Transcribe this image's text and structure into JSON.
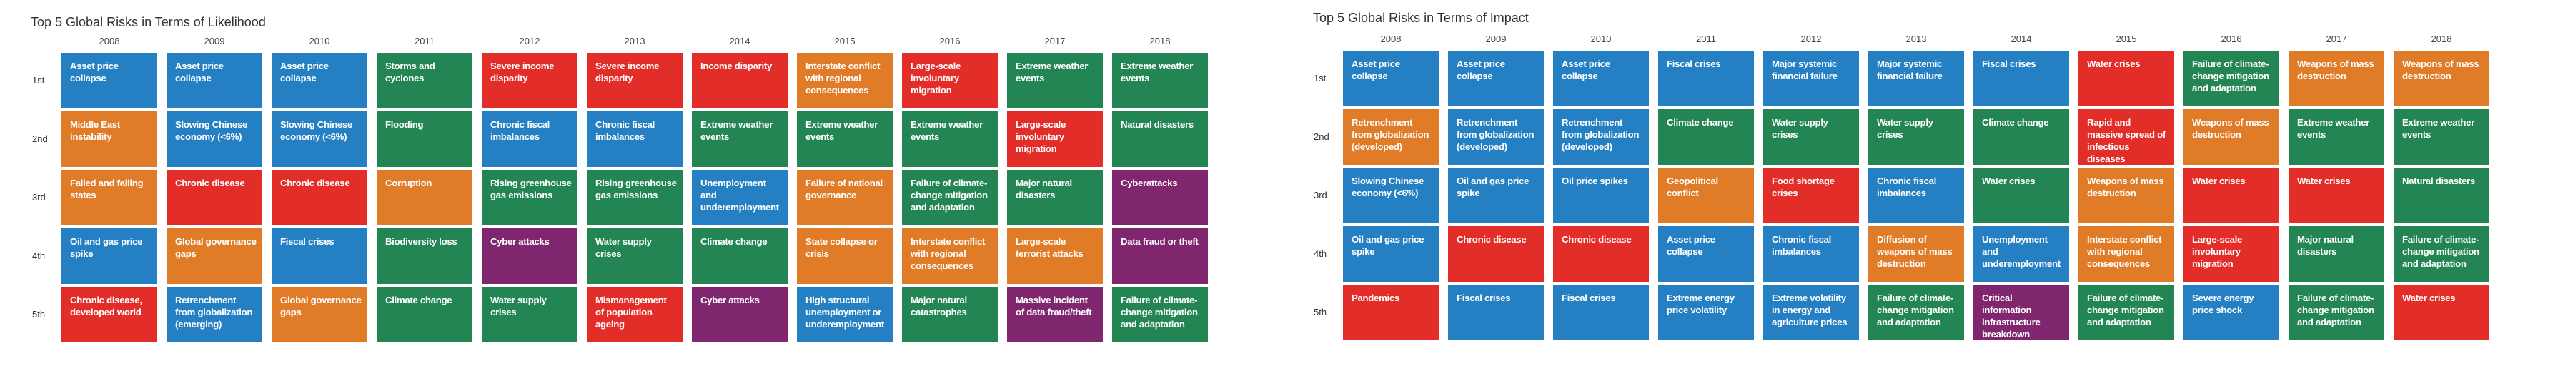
{
  "categories": {
    "economic": "#2580C3",
    "geopolitical": "#E07B27",
    "societal": "#E32D28",
    "environmental": "#238553",
    "technological": "#80266F"
  },
  "chart_data": [
    {
      "type": "table",
      "title": "Top 5 Global Risks in Terms of Likelihood",
      "columns": [
        "2008",
        "2009",
        "2010",
        "2011",
        "2012",
        "2013",
        "2014",
        "2015",
        "2016",
        "2017",
        "2018"
      ],
      "rows": [
        "1st",
        "2nd",
        "3rd",
        "4th",
        "5th"
      ],
      "cells": [
        [
          {
            "label": "Asset price collapse",
            "category": "economic"
          },
          {
            "label": "Asset price collapse",
            "category": "economic"
          },
          {
            "label": "Asset price collapse",
            "category": "economic"
          },
          {
            "label": "Storms and cyclones",
            "category": "environmental"
          },
          {
            "label": "Severe income disparity",
            "category": "societal"
          },
          {
            "label": "Severe income disparity",
            "category": "societal"
          },
          {
            "label": "Income disparity",
            "category": "societal"
          },
          {
            "label": "Interstate conflict with regional consequences",
            "category": "geopolitical"
          },
          {
            "label": "Large-scale involuntary migration",
            "category": "societal"
          },
          {
            "label": "Extreme weather events",
            "category": "environmental"
          },
          {
            "label": "Extreme weather events",
            "category": "environmental"
          }
        ],
        [
          {
            "label": "Middle East instability",
            "category": "geopolitical"
          },
          {
            "label": "Slowing Chinese economy (<6%)",
            "category": "economic"
          },
          {
            "label": "Slowing Chinese economy (<6%)",
            "category": "economic"
          },
          {
            "label": "Flooding",
            "category": "environmental"
          },
          {
            "label": "Chronic fiscal imbalances",
            "category": "economic"
          },
          {
            "label": "Chronic fiscal imbalances",
            "category": "economic"
          },
          {
            "label": "Extreme weather events",
            "category": "environmental"
          },
          {
            "label": "Extreme weather events",
            "category": "environmental"
          },
          {
            "label": "Extreme weather events",
            "category": "environmental"
          },
          {
            "label": "Large-scale involuntary migration",
            "category": "societal"
          },
          {
            "label": "Natural disasters",
            "category": "environmental"
          }
        ],
        [
          {
            "label": "Failed and failing states",
            "category": "geopolitical"
          },
          {
            "label": "Chronic disease",
            "category": "societal"
          },
          {
            "label": "Chronic disease",
            "category": "societal"
          },
          {
            "label": "Corruption",
            "category": "geopolitical"
          },
          {
            "label": "Rising greenhouse gas emissions",
            "category": "environmental"
          },
          {
            "label": "Rising greenhouse gas emissions",
            "category": "environmental"
          },
          {
            "label": "Unemployment and underemployment",
            "category": "economic"
          },
          {
            "label": "Failure of national governance",
            "category": "geopolitical"
          },
          {
            "label": "Failure of climate-change mitigation and adaptation",
            "category": "environmental"
          },
          {
            "label": "Major natural disasters",
            "category": "environmental"
          },
          {
            "label": "Cyberattacks",
            "category": "technological"
          }
        ],
        [
          {
            "label": "Oil and gas price spike",
            "category": "economic"
          },
          {
            "label": "Global governance gaps",
            "category": "geopolitical"
          },
          {
            "label": "Fiscal crises",
            "category": "economic"
          },
          {
            "label": "Biodiversity loss",
            "category": "environmental"
          },
          {
            "label": "Cyber attacks",
            "category": "technological"
          },
          {
            "label": "Water supply crises",
            "category": "environmental"
          },
          {
            "label": "Climate change",
            "category": "environmental"
          },
          {
            "label": "State collapse or crisis",
            "category": "geopolitical"
          },
          {
            "label": "Interstate conflict with regional consequences",
            "category": "geopolitical"
          },
          {
            "label": "Large-scale terrorist attacks",
            "category": "geopolitical"
          },
          {
            "label": "Data fraud or theft",
            "category": "technological"
          }
        ],
        [
          {
            "label": "Chronic disease, developed world",
            "category": "societal"
          },
          {
            "label": "Retrenchment from globalization (emerging)",
            "category": "economic"
          },
          {
            "label": "Global governance gaps",
            "category": "geopolitical"
          },
          {
            "label": "Climate change",
            "category": "environmental"
          },
          {
            "label": "Water supply crises",
            "category": "environmental"
          },
          {
            "label": "Mismanagement of population ageing",
            "category": "societal"
          },
          {
            "label": "Cyber attacks",
            "category": "technological"
          },
          {
            "label": "High structural unemployment or underemployment",
            "category": "economic"
          },
          {
            "label": "Major natural catastrophes",
            "category": "environmental"
          },
          {
            "label": "Massive incident of data fraud/theft",
            "category": "technological"
          },
          {
            "label": "Failure of climate-change mitigation and adaptation",
            "category": "environmental"
          }
        ]
      ]
    },
    {
      "type": "table",
      "title": "Top 5 Global Risks in Terms of Impact",
      "columns": [
        "2008",
        "2009",
        "2010",
        "2011",
        "2012",
        "2013",
        "2014",
        "2015",
        "2016",
        "2017",
        "2018"
      ],
      "rows": [
        "1st",
        "2nd",
        "3rd",
        "4th",
        "5th"
      ],
      "cells": [
        [
          {
            "label": "Asset price collapse",
            "category": "economic"
          },
          {
            "label": "Asset price collapse",
            "category": "economic"
          },
          {
            "label": "Asset price collapse",
            "category": "economic"
          },
          {
            "label": "Fiscal crises",
            "category": "economic"
          },
          {
            "label": "Major systemic financial failure",
            "category": "economic"
          },
          {
            "label": "Major systemic financial failure",
            "category": "economic"
          },
          {
            "label": "Fiscal crises",
            "category": "economic"
          },
          {
            "label": "Water crises",
            "category": "societal"
          },
          {
            "label": "Failure of climate-change mitigation and adaptation",
            "category": "environmental"
          },
          {
            "label": "Weapons of mass destruction",
            "category": "geopolitical"
          },
          {
            "label": "Weapons of mass destruction",
            "category": "geopolitical"
          }
        ],
        [
          {
            "label": "Retrenchment from globalization (developed)",
            "category": "geopolitical"
          },
          {
            "label": "Retrenchment from globalization (developed)",
            "category": "economic"
          },
          {
            "label": "Retrenchment from globalization (developed)",
            "category": "economic"
          },
          {
            "label": "Climate change",
            "category": "environmental"
          },
          {
            "label": "Water supply crises",
            "category": "environmental"
          },
          {
            "label": "Water supply crises",
            "category": "environmental"
          },
          {
            "label": "Climate change",
            "category": "environmental"
          },
          {
            "label": "Rapid and massive spread of infectious diseases",
            "category": "societal"
          },
          {
            "label": "Weapons of mass destruction",
            "category": "geopolitical"
          },
          {
            "label": "Extreme weather events",
            "category": "environmental"
          },
          {
            "label": "Extreme weather events",
            "category": "environmental"
          }
        ],
        [
          {
            "label": "Slowing Chinese economy (<6%)",
            "category": "economic"
          },
          {
            "label": "Oil and gas price spike",
            "category": "economic"
          },
          {
            "label": "Oil price spikes",
            "category": "economic"
          },
          {
            "label": "Geopolitical conflict",
            "category": "geopolitical"
          },
          {
            "label": "Food shortage crises",
            "category": "societal"
          },
          {
            "label": "Chronic fiscal imbalances",
            "category": "economic"
          },
          {
            "label": "Water crises",
            "category": "environmental"
          },
          {
            "label": "Weapons of mass destruction",
            "category": "geopolitical"
          },
          {
            "label": "Water crises",
            "category": "societal"
          },
          {
            "label": "Water crises",
            "category": "societal"
          },
          {
            "label": "Natural disasters",
            "category": "environmental"
          }
        ],
        [
          {
            "label": "Oil and gas price spike",
            "category": "economic"
          },
          {
            "label": "Chronic disease",
            "category": "societal"
          },
          {
            "label": "Chronic disease",
            "category": "societal"
          },
          {
            "label": "Asset price collapse",
            "category": "economic"
          },
          {
            "label": "Chronic fiscal imbalances",
            "category": "economic"
          },
          {
            "label": "Diffusion of weapons of mass destruction",
            "category": "geopolitical"
          },
          {
            "label": "Unemployment and underemployment",
            "category": "economic"
          },
          {
            "label": "Interstate conflict with regional consequences",
            "category": "geopolitical"
          },
          {
            "label": "Large-scale involuntary migration",
            "category": "societal"
          },
          {
            "label": "Major natural disasters",
            "category": "environmental"
          },
          {
            "label": "Failure of climate-change mitigation and adaptation",
            "category": "environmental"
          }
        ],
        [
          {
            "label": "Pandemics",
            "category": "societal"
          },
          {
            "label": "Fiscal crises",
            "category": "economic"
          },
          {
            "label": "Fiscal crises",
            "category": "economic"
          },
          {
            "label": "Extreme energy price volatility",
            "category": "economic"
          },
          {
            "label": "Extreme volatility in energy and agriculture prices",
            "category": "economic"
          },
          {
            "label": "Failure of climate-change mitigation and adaptation",
            "category": "environmental"
          },
          {
            "label": "Critical information infrastructure breakdown",
            "category": "technological"
          },
          {
            "label": "Failure of climate-change mitigation and adaptation",
            "category": "environmental"
          },
          {
            "label": "Severe energy price shock",
            "category": "economic"
          },
          {
            "label": "Failure of climate-change mitigation and adaptation",
            "category": "environmental"
          },
          {
            "label": "Water crises",
            "category": "societal"
          }
        ]
      ]
    }
  ]
}
